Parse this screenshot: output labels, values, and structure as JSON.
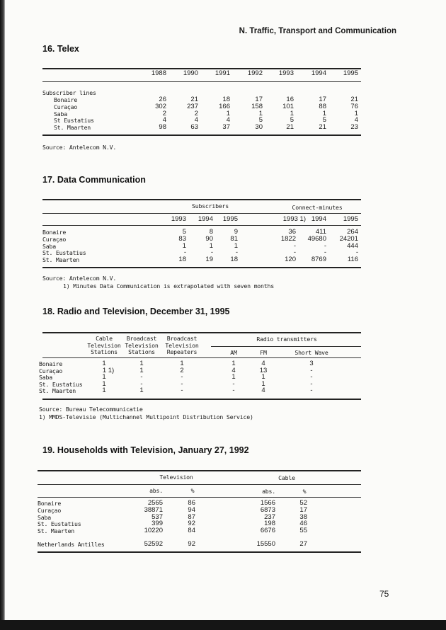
{
  "running_header": "N. Traffic, Transport and Communication",
  "page_number": "75",
  "telex": {
    "title": "16. Telex",
    "years": [
      "1988",
      "1990",
      "1991",
      "1992",
      "1993",
      "1994",
      "1995"
    ],
    "group_label": "Subscriber lines",
    "rows": [
      {
        "label": "Bonaire",
        "values": [
          "26",
          "21",
          "18",
          "17",
          "16",
          "17",
          "21"
        ]
      },
      {
        "label": "Curaçao",
        "values": [
          "302",
          "237",
          "166",
          "158",
          "101",
          "88",
          "76"
        ]
      },
      {
        "label": "Saba",
        "values": [
          "2",
          "2",
          "1",
          "1",
          "1",
          "1",
          "1"
        ]
      },
      {
        "label": "St Eustatius",
        "values": [
          "4",
          "4",
          "4",
          "5",
          "5",
          "5",
          "4"
        ]
      },
      {
        "label": "St. Maarten",
        "values": [
          "98",
          "63",
          "37",
          "30",
          "21",
          "21",
          "23"
        ]
      }
    ],
    "source": "Source: Antelecom N.V."
  },
  "data_communication": {
    "title": "17. Data Communication",
    "group_subscribers": "Subscribers",
    "group_connect": "Connect-minutes",
    "columns": [
      "1993",
      "1994",
      "1995",
      "1993 1)",
      "1994",
      "1995"
    ],
    "rows": [
      {
        "label": "Bonaire",
        "values": [
          "5",
          "8",
          "9",
          "36",
          "411",
          "264"
        ]
      },
      {
        "label": "Curaçao",
        "values": [
          "83",
          "90",
          "81",
          "1822",
          "49680",
          "24201"
        ]
      },
      {
        "label": "Saba",
        "values": [
          "1",
          "1",
          "1",
          "-",
          "-",
          "444"
        ]
      },
      {
        "label": "St. Eustatius",
        "values": [
          "-",
          "-",
          "-",
          "-",
          "-",
          "-"
        ]
      },
      {
        "label": "St. Maarten",
        "values": [
          "18",
          "19",
          "18",
          "120",
          "8769",
          "116"
        ]
      }
    ],
    "source": "Source: Antelecom N.V.",
    "footnote": "1) Minutes Data Communication is extrapolated with seven months"
  },
  "radio_tv": {
    "title": "18. Radio and Television, December 31, 1995",
    "columns": [
      [
        "Cable",
        "Television",
        "Stations"
      ],
      [
        "Broadcast",
        "Television",
        "Stations"
      ],
      [
        "Broadcast",
        "Television",
        "Repeaters"
      ]
    ],
    "group_radio": "Radio transmitters",
    "radio_columns": [
      "AM",
      "FM",
      "Short Wave"
    ],
    "rows": [
      {
        "label": "Bonaire",
        "values": [
          "1",
          "1",
          "1",
          "1",
          "4",
          "3"
        ]
      },
      {
        "label": "Curaçao",
        "values": [
          "1 1)",
          "1",
          "2",
          "4",
          "13",
          "-"
        ]
      },
      {
        "label": "Saba",
        "values": [
          "1",
          "-",
          "-",
          "1",
          "1",
          "-"
        ]
      },
      {
        "label": "St. Eustatius",
        "values": [
          "1",
          "-",
          "-",
          "-",
          "1",
          "-"
        ]
      },
      {
        "label": "St. Maarten",
        "values": [
          "1",
          "1",
          "-",
          "-",
          "4",
          "-"
        ]
      }
    ],
    "source": "Source: Bureau Telecommunicatie",
    "footnote": "1) MMDS-Televisie (Multichannel Multipoint Distribution Service)"
  },
  "households_tv": {
    "title": "19. Households with Television, January 27, 1992",
    "group_television": "Television",
    "group_cable": "Cable",
    "columns": [
      "abs.",
      "%",
      "abs.",
      "%"
    ],
    "rows": [
      {
        "label": "Bonaire",
        "values": [
          "2565",
          "86",
          "1566",
          "52"
        ]
      },
      {
        "label": "Curaçao",
        "values": [
          "38871",
          "94",
          "6873",
          "17"
        ]
      },
      {
        "label": "Saba",
        "values": [
          "537",
          "87",
          "237",
          "38"
        ]
      },
      {
        "label": "St. Eustatius",
        "values": [
          "399",
          "92",
          "198",
          "46"
        ]
      },
      {
        "label": "St. Maarten",
        "values": [
          "10220",
          "84",
          "6676",
          "55"
        ]
      }
    ],
    "total": {
      "label": "Netherlands Antilles",
      "values": [
        "52592",
        "92",
        "15550",
        "27"
      ]
    }
  }
}
